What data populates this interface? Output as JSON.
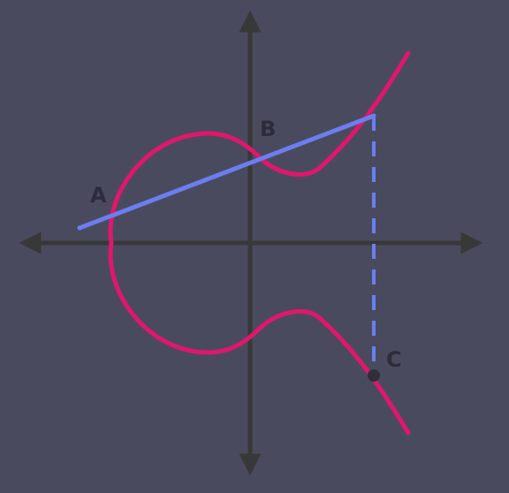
{
  "colors": {
    "background": "#4a4a5f",
    "axes": "#383838",
    "curve": "#e0176a",
    "secant": "#6b7ef0",
    "point": "#2f2f3a",
    "label": "#2c2c3a"
  },
  "points": {
    "a": {
      "label": "A"
    },
    "b": {
      "label": "B"
    },
    "c": {
      "label": "C"
    }
  }
}
